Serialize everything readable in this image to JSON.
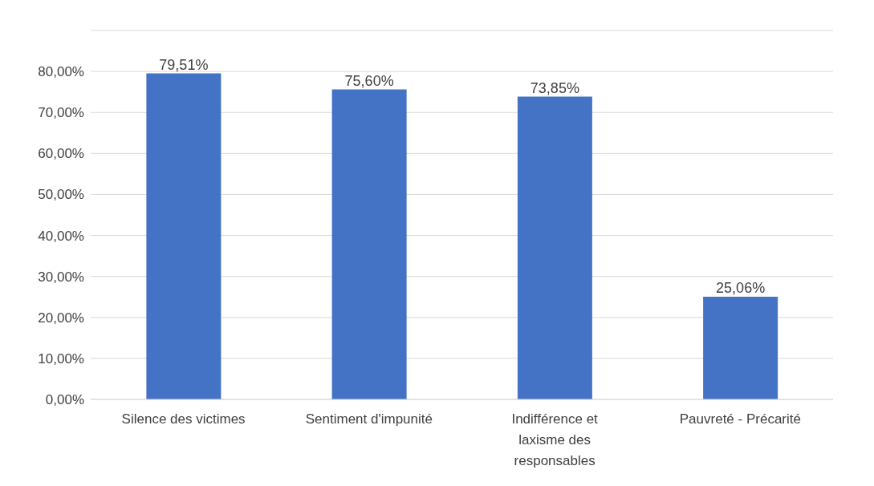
{
  "chart_data": {
    "type": "bar",
    "categories": [
      "Silence des victimes",
      "Sentiment d'impunité",
      "Indifférence et laxisme des responsables",
      "Pauvreté - Précarité"
    ],
    "values": [
      79.51,
      75.6,
      73.85,
      25.06
    ],
    "value_labels": [
      "79,51%",
      "75,60%",
      "73,85%",
      "25,06%"
    ],
    "color": "#4472c4",
    "ylim": [
      0,
      90
    ],
    "yticks": [
      {
        "value": 0,
        "label": "0,00%"
      },
      {
        "value": 10,
        "label": "10,00%"
      },
      {
        "value": 20,
        "label": "20,00%"
      },
      {
        "value": 30,
        "label": "30,00%"
      },
      {
        "value": 40,
        "label": "40,00%"
      },
      {
        "value": 50,
        "label": "50,00%"
      },
      {
        "value": 60,
        "label": "60,00%"
      },
      {
        "value": 70,
        "label": "70,00%"
      },
      {
        "value": 80,
        "label": "80,00%"
      }
    ],
    "grid": "y"
  }
}
